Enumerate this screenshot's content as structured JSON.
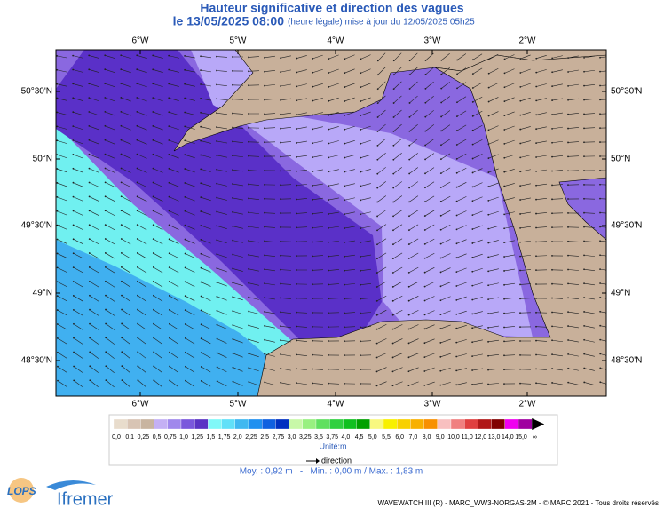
{
  "header": {
    "title": "Hauteur significative et direction des vagues",
    "date": "le 13/05/2025 08:00",
    "note": "(heure légale) mise à jour du 12/05/2025 05h25"
  },
  "map": {
    "lon_labels": [
      "6°W",
      "5°W",
      "4°W",
      "3°W",
      "2°W"
    ],
    "lat_labels": [
      "50°30'N",
      "50°N",
      "49°30'N",
      "49°N",
      "48°30'N"
    ]
  },
  "legend": {
    "labels": [
      "0,0",
      "0,1",
      "0,25",
      "0,5",
      "0,75",
      "1,0",
      "1,25",
      "1,5",
      "1,75",
      "2,0",
      "2,25",
      "2,5",
      "2,75",
      "3,0",
      "3,25",
      "3,5",
      "3,75",
      "4,0",
      "4,5",
      "5,0",
      "5,5",
      "6,0",
      "7,0",
      "8,0",
      "9,0",
      "10,0",
      "11,0",
      "12,0",
      "13,0",
      "14,0",
      "15,0",
      "∞"
    ],
    "colors": [
      "#e8dccc",
      "#d8c4b4",
      "#c8b4a0",
      "#c4b0f4",
      "#a088ec",
      "#7a58dc",
      "#5a34c4",
      "#80f8f8",
      "#60e0f8",
      "#40b8f0",
      "#2090f0",
      "#1060e0",
      "#0030c0",
      "#c8f8a8",
      "#98f080",
      "#60e060",
      "#30d040",
      "#10c020",
      "#00a000",
      "#f8f880",
      "#f8f000",
      "#f8d000",
      "#f8b000",
      "#f89000",
      "#f8c0c0",
      "#f08080",
      "#e04040",
      "#b01818",
      "#800000",
      "#f000f0",
      "#a000a0"
    ],
    "unit": "Unité:m",
    "arrow_label": "direction"
  },
  "stats": "Moy. : 0,92 m   -   Min. : 0,00 m / Max. : 1,83 m",
  "footer": "WAVEWATCH III (R) - MARC_WW3-NORGAS-2M - © MARC 2021 - Tous droits réservés",
  "logos": {
    "lops": "LOPS",
    "ifremer": "Ifremer"
  }
}
